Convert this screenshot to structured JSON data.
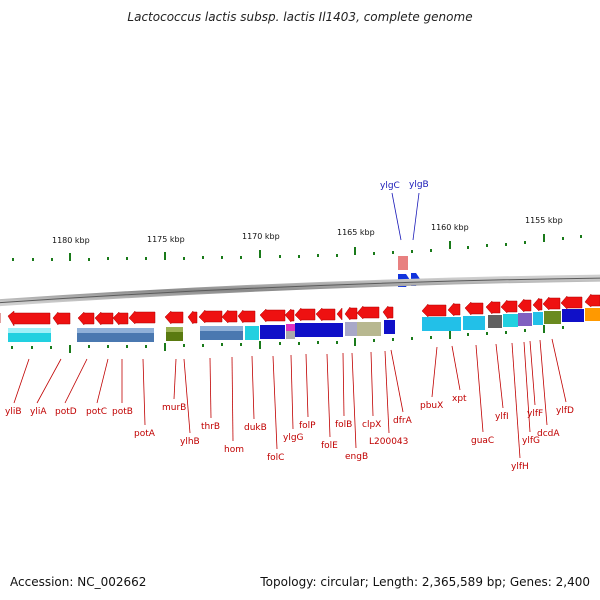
{
  "title": "Lactococcus lactis subsp. lactis Il1403, complete genome",
  "footer": {
    "accession": "Accession: NC_002662",
    "summary": "Topology: circular; Length: 2,365,589 bp; Genes: 2,400"
  },
  "scale_labels": [
    "1180 kbp",
    "1175 kbp",
    "1170 kbp",
    "1165 kbp",
    "1160 kbp",
    "1155 kbp"
  ],
  "red_labels": [
    "yliB",
    "yliA",
    "potD",
    "potC",
    "potB",
    "potA",
    "murB",
    "ylhB",
    "thrB",
    "hom",
    "dukB",
    "folC",
    "ylgG",
    "folP",
    "folE",
    "folB",
    "engB",
    "clpX",
    "L200043",
    "dfrA",
    "pbuX",
    "xpt",
    "guaC",
    "ylfI",
    "ylfH",
    "ylfG",
    "ylfF",
    "dcdA",
    "ylfD"
  ],
  "blue_labels": [
    "ylgC",
    "ylgB"
  ],
  "colors": {
    "gene": "#ee1111",
    "label": "#c00000",
    "tick": "#1a7a1a",
    "backbone": "#888888",
    "reverse": "#1133dd"
  }
}
